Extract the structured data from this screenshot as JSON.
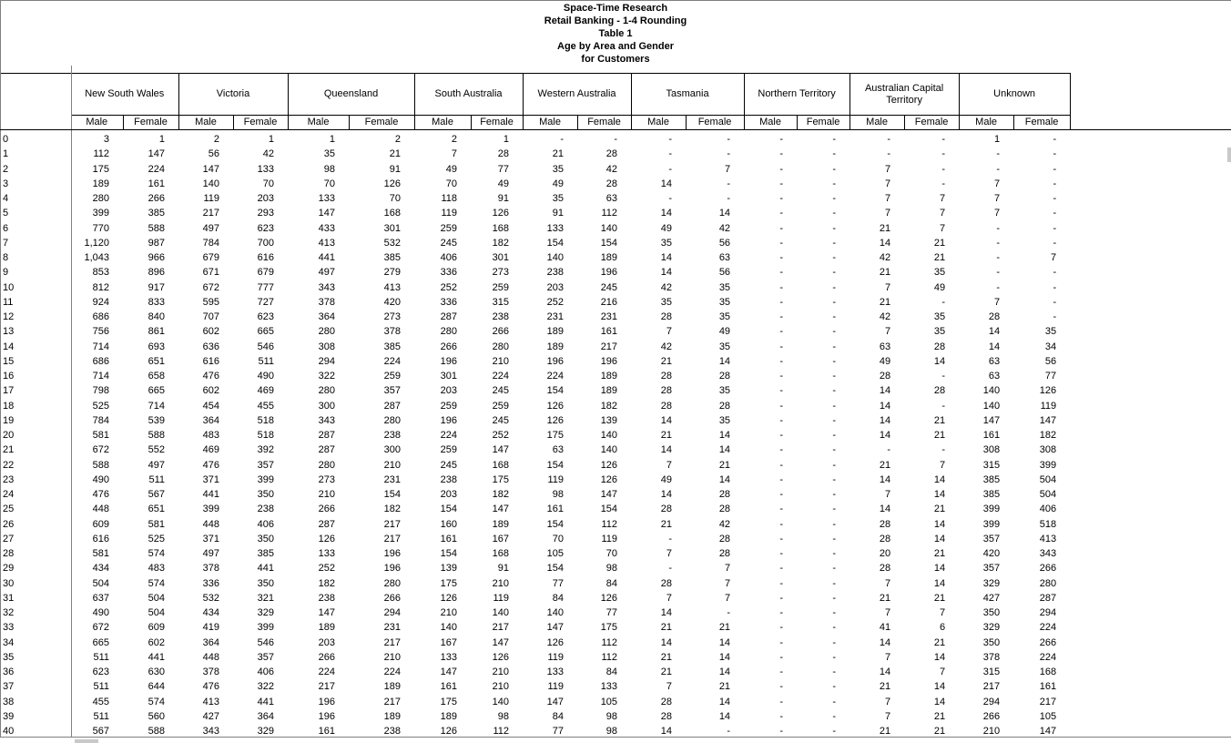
{
  "title_lines": [
    "Space-Time Research",
    "Retail Banking - 1-4 Rounding",
    "Table 1",
    "Age by Area and Gender",
    "for Customers"
  ],
  "table": {
    "corner_label": "",
    "groups": [
      "New South Wales",
      "Victoria",
      "Queensland",
      "South Australia",
      "Western Australia",
      "Tasmania",
      "Northern Territory",
      "Australian Capital Territory",
      "Unknown"
    ],
    "sub_headers": [
      "Male",
      "Female"
    ],
    "rows": [
      {
        "age": "0",
        "values": [
          "3",
          "1",
          "2",
          "1",
          "1",
          "2",
          "2",
          "1",
          "-",
          "-",
          "-",
          "-",
          "-",
          "-",
          "-",
          "-",
          "1",
          "-"
        ]
      },
      {
        "age": "1",
        "values": [
          "112",
          "147",
          "56",
          "42",
          "35",
          "21",
          "7",
          "28",
          "21",
          "28",
          "-",
          "-",
          "-",
          "-",
          "-",
          "-",
          "-",
          "-"
        ]
      },
      {
        "age": "2",
        "values": [
          "175",
          "224",
          "147",
          "133",
          "98",
          "91",
          "49",
          "77",
          "35",
          "42",
          "-",
          "7",
          "-",
          "-",
          "7",
          "-",
          "-",
          "-"
        ]
      },
      {
        "age": "3",
        "values": [
          "189",
          "161",
          "140",
          "70",
          "70",
          "126",
          "70",
          "49",
          "49",
          "28",
          "14",
          "-",
          "-",
          "-",
          "7",
          "-",
          "7",
          "-"
        ]
      },
      {
        "age": "4",
        "values": [
          "280",
          "266",
          "119",
          "203",
          "133",
          "70",
          "118",
          "91",
          "35",
          "63",
          "-",
          "-",
          "-",
          "-",
          "7",
          "7",
          "7",
          "-"
        ]
      },
      {
        "age": "5",
        "values": [
          "399",
          "385",
          "217",
          "293",
          "147",
          "168",
          "119",
          "126",
          "91",
          "112",
          "14",
          "14",
          "-",
          "-",
          "7",
          "7",
          "7",
          "-"
        ]
      },
      {
        "age": "6",
        "values": [
          "770",
          "588",
          "497",
          "623",
          "433",
          "301",
          "259",
          "168",
          "133",
          "140",
          "49",
          "42",
          "-",
          "-",
          "21",
          "7",
          "-",
          "-"
        ]
      },
      {
        "age": "7",
        "values": [
          "1,120",
          "987",
          "784",
          "700",
          "413",
          "532",
          "245",
          "182",
          "154",
          "154",
          "35",
          "56",
          "-",
          "-",
          "14",
          "21",
          "-",
          "-"
        ]
      },
      {
        "age": "8",
        "values": [
          "1,043",
          "966",
          "679",
          "616",
          "441",
          "385",
          "406",
          "301",
          "140",
          "189",
          "14",
          "63",
          "-",
          "-",
          "42",
          "21",
          "-",
          "7"
        ]
      },
      {
        "age": "9",
        "values": [
          "853",
          "896",
          "671",
          "679",
          "497",
          "279",
          "336",
          "273",
          "238",
          "196",
          "14",
          "56",
          "-",
          "-",
          "21",
          "35",
          "-",
          "-"
        ]
      },
      {
        "age": "10",
        "values": [
          "812",
          "917",
          "672",
          "777",
          "343",
          "413",
          "252",
          "259",
          "203",
          "245",
          "42",
          "35",
          "-",
          "-",
          "7",
          "49",
          "-",
          "-"
        ]
      },
      {
        "age": "11",
        "values": [
          "924",
          "833",
          "595",
          "727",
          "378",
          "420",
          "336",
          "315",
          "252",
          "216",
          "35",
          "35",
          "-",
          "-",
          "21",
          "-",
          "7",
          "-"
        ]
      },
      {
        "age": "12",
        "values": [
          "686",
          "840",
          "707",
          "623",
          "364",
          "273",
          "287",
          "238",
          "231",
          "231",
          "28",
          "35",
          "-",
          "-",
          "42",
          "35",
          "28",
          "-"
        ]
      },
      {
        "age": "13",
        "values": [
          "756",
          "861",
          "602",
          "665",
          "280",
          "378",
          "280",
          "266",
          "189",
          "161",
          "7",
          "49",
          "-",
          "-",
          "7",
          "35",
          "14",
          "35"
        ]
      },
      {
        "age": "14",
        "values": [
          "714",
          "693",
          "636",
          "546",
          "308",
          "385",
          "266",
          "280",
          "189",
          "217",
          "42",
          "35",
          "-",
          "-",
          "63",
          "28",
          "14",
          "34"
        ]
      },
      {
        "age": "15",
        "values": [
          "686",
          "651",
          "616",
          "511",
          "294",
          "224",
          "196",
          "210",
          "196",
          "196",
          "21",
          "14",
          "-",
          "-",
          "49",
          "14",
          "63",
          "56"
        ]
      },
      {
        "age": "16",
        "values": [
          "714",
          "658",
          "476",
          "490",
          "322",
          "259",
          "301",
          "224",
          "224",
          "189",
          "28",
          "28",
          "-",
          "-",
          "28",
          "-",
          "63",
          "77"
        ]
      },
      {
        "age": "17",
        "values": [
          "798",
          "665",
          "602",
          "469",
          "280",
          "357",
          "203",
          "245",
          "154",
          "189",
          "28",
          "35",
          "-",
          "-",
          "14",
          "28",
          "140",
          "126"
        ]
      },
      {
        "age": "18",
        "values": [
          "525",
          "714",
          "454",
          "455",
          "300",
          "287",
          "259",
          "259",
          "126",
          "182",
          "28",
          "28",
          "-",
          "-",
          "14",
          "-",
          "140",
          "119"
        ]
      },
      {
        "age": "19",
        "values": [
          "784",
          "539",
          "364",
          "518",
          "343",
          "280",
          "196",
          "245",
          "126",
          "139",
          "14",
          "35",
          "-",
          "-",
          "14",
          "21",
          "147",
          "147"
        ]
      },
      {
        "age": "20",
        "values": [
          "581",
          "588",
          "483",
          "518",
          "287",
          "238",
          "224",
          "252",
          "175",
          "140",
          "21",
          "14",
          "-",
          "-",
          "14",
          "21",
          "161",
          "182"
        ]
      },
      {
        "age": "21",
        "values": [
          "672",
          "552",
          "469",
          "392",
          "287",
          "300",
          "259",
          "147",
          "63",
          "140",
          "14",
          "14",
          "-",
          "-",
          "-",
          "-",
          "308",
          "308"
        ]
      },
      {
        "age": "22",
        "values": [
          "588",
          "497",
          "476",
          "357",
          "280",
          "210",
          "245",
          "168",
          "154",
          "126",
          "7",
          "21",
          "-",
          "-",
          "21",
          "7",
          "315",
          "399"
        ]
      },
      {
        "age": "23",
        "values": [
          "490",
          "511",
          "371",
          "399",
          "273",
          "231",
          "238",
          "175",
          "119",
          "126",
          "49",
          "14",
          "-",
          "-",
          "14",
          "14",
          "385",
          "504"
        ]
      },
      {
        "age": "24",
        "values": [
          "476",
          "567",
          "441",
          "350",
          "210",
          "154",
          "203",
          "182",
          "98",
          "147",
          "14",
          "28",
          "-",
          "-",
          "7",
          "14",
          "385",
          "504"
        ]
      },
      {
        "age": "25",
        "values": [
          "448",
          "651",
          "399",
          "238",
          "266",
          "182",
          "154",
          "147",
          "161",
          "154",
          "28",
          "28",
          "-",
          "-",
          "14",
          "21",
          "399",
          "406"
        ]
      },
      {
        "age": "26",
        "values": [
          "609",
          "581",
          "448",
          "406",
          "287",
          "217",
          "160",
          "189",
          "154",
          "112",
          "21",
          "42",
          "-",
          "-",
          "28",
          "14",
          "399",
          "518"
        ]
      },
      {
        "age": "27",
        "values": [
          "616",
          "525",
          "371",
          "350",
          "126",
          "217",
          "161",
          "167",
          "70",
          "119",
          "-",
          "28",
          "-",
          "-",
          "28",
          "14",
          "357",
          "413"
        ]
      },
      {
        "age": "28",
        "values": [
          "581",
          "574",
          "497",
          "385",
          "133",
          "196",
          "154",
          "168",
          "105",
          "70",
          "7",
          "28",
          "-",
          "-",
          "20",
          "21",
          "420",
          "343"
        ]
      },
      {
        "age": "29",
        "values": [
          "434",
          "483",
          "378",
          "441",
          "252",
          "196",
          "139",
          "91",
          "154",
          "98",
          "-",
          "7",
          "-",
          "-",
          "28",
          "14",
          "357",
          "266"
        ]
      },
      {
        "age": "30",
        "values": [
          "504",
          "574",
          "336",
          "350",
          "182",
          "280",
          "175",
          "210",
          "77",
          "84",
          "28",
          "7",
          "-",
          "-",
          "7",
          "14",
          "329",
          "280"
        ]
      },
      {
        "age": "31",
        "values": [
          "637",
          "504",
          "532",
          "321",
          "238",
          "266",
          "126",
          "119",
          "84",
          "126",
          "7",
          "7",
          "-",
          "-",
          "21",
          "21",
          "427",
          "287"
        ]
      },
      {
        "age": "32",
        "values": [
          "490",
          "504",
          "434",
          "329",
          "147",
          "294",
          "210",
          "140",
          "140",
          "77",
          "14",
          "-",
          "-",
          "-",
          "7",
          "7",
          "350",
          "294"
        ]
      },
      {
        "age": "33",
        "values": [
          "672",
          "609",
          "419",
          "399",
          "189",
          "231",
          "140",
          "217",
          "147",
          "175",
          "21",
          "21",
          "-",
          "-",
          "41",
          "6",
          "329",
          "224"
        ]
      },
      {
        "age": "34",
        "values": [
          "665",
          "602",
          "364",
          "546",
          "203",
          "217",
          "167",
          "147",
          "126",
          "112",
          "14",
          "14",
          "-",
          "-",
          "14",
          "21",
          "350",
          "266"
        ]
      },
      {
        "age": "35",
        "values": [
          "511",
          "441",
          "448",
          "357",
          "266",
          "210",
          "133",
          "126",
          "119",
          "112",
          "21",
          "14",
          "-",
          "-",
          "7",
          "14",
          "378",
          "224"
        ]
      },
      {
        "age": "36",
        "values": [
          "623",
          "630",
          "378",
          "406",
          "224",
          "224",
          "147",
          "210",
          "133",
          "84",
          "21",
          "14",
          "-",
          "-",
          "14",
          "7",
          "315",
          "168"
        ]
      },
      {
        "age": "37",
        "values": [
          "511",
          "644",
          "476",
          "322",
          "217",
          "189",
          "161",
          "210",
          "119",
          "133",
          "7",
          "21",
          "-",
          "-",
          "21",
          "14",
          "217",
          "161"
        ]
      },
      {
        "age": "38",
        "values": [
          "455",
          "574",
          "413",
          "441",
          "196",
          "217",
          "175",
          "140",
          "147",
          "105",
          "28",
          "14",
          "-",
          "-",
          "7",
          "14",
          "294",
          "217"
        ]
      },
      {
        "age": "39",
        "values": [
          "511",
          "560",
          "427",
          "364",
          "196",
          "189",
          "189",
          "98",
          "84",
          "98",
          "28",
          "14",
          "-",
          "-",
          "7",
          "21",
          "266",
          "105"
        ]
      },
      {
        "age": "40",
        "values": [
          "567",
          "588",
          "343",
          "329",
          "161",
          "238",
          "126",
          "112",
          "77",
          "98",
          "14",
          "-",
          "-",
          "-",
          "21",
          "21",
          "210",
          "147"
        ]
      }
    ]
  },
  "colors": {
    "line_gray": "#808080",
    "line_black": "#000000",
    "scroll_thumb": "#c9c9c9",
    "background": "#ffffff"
  }
}
